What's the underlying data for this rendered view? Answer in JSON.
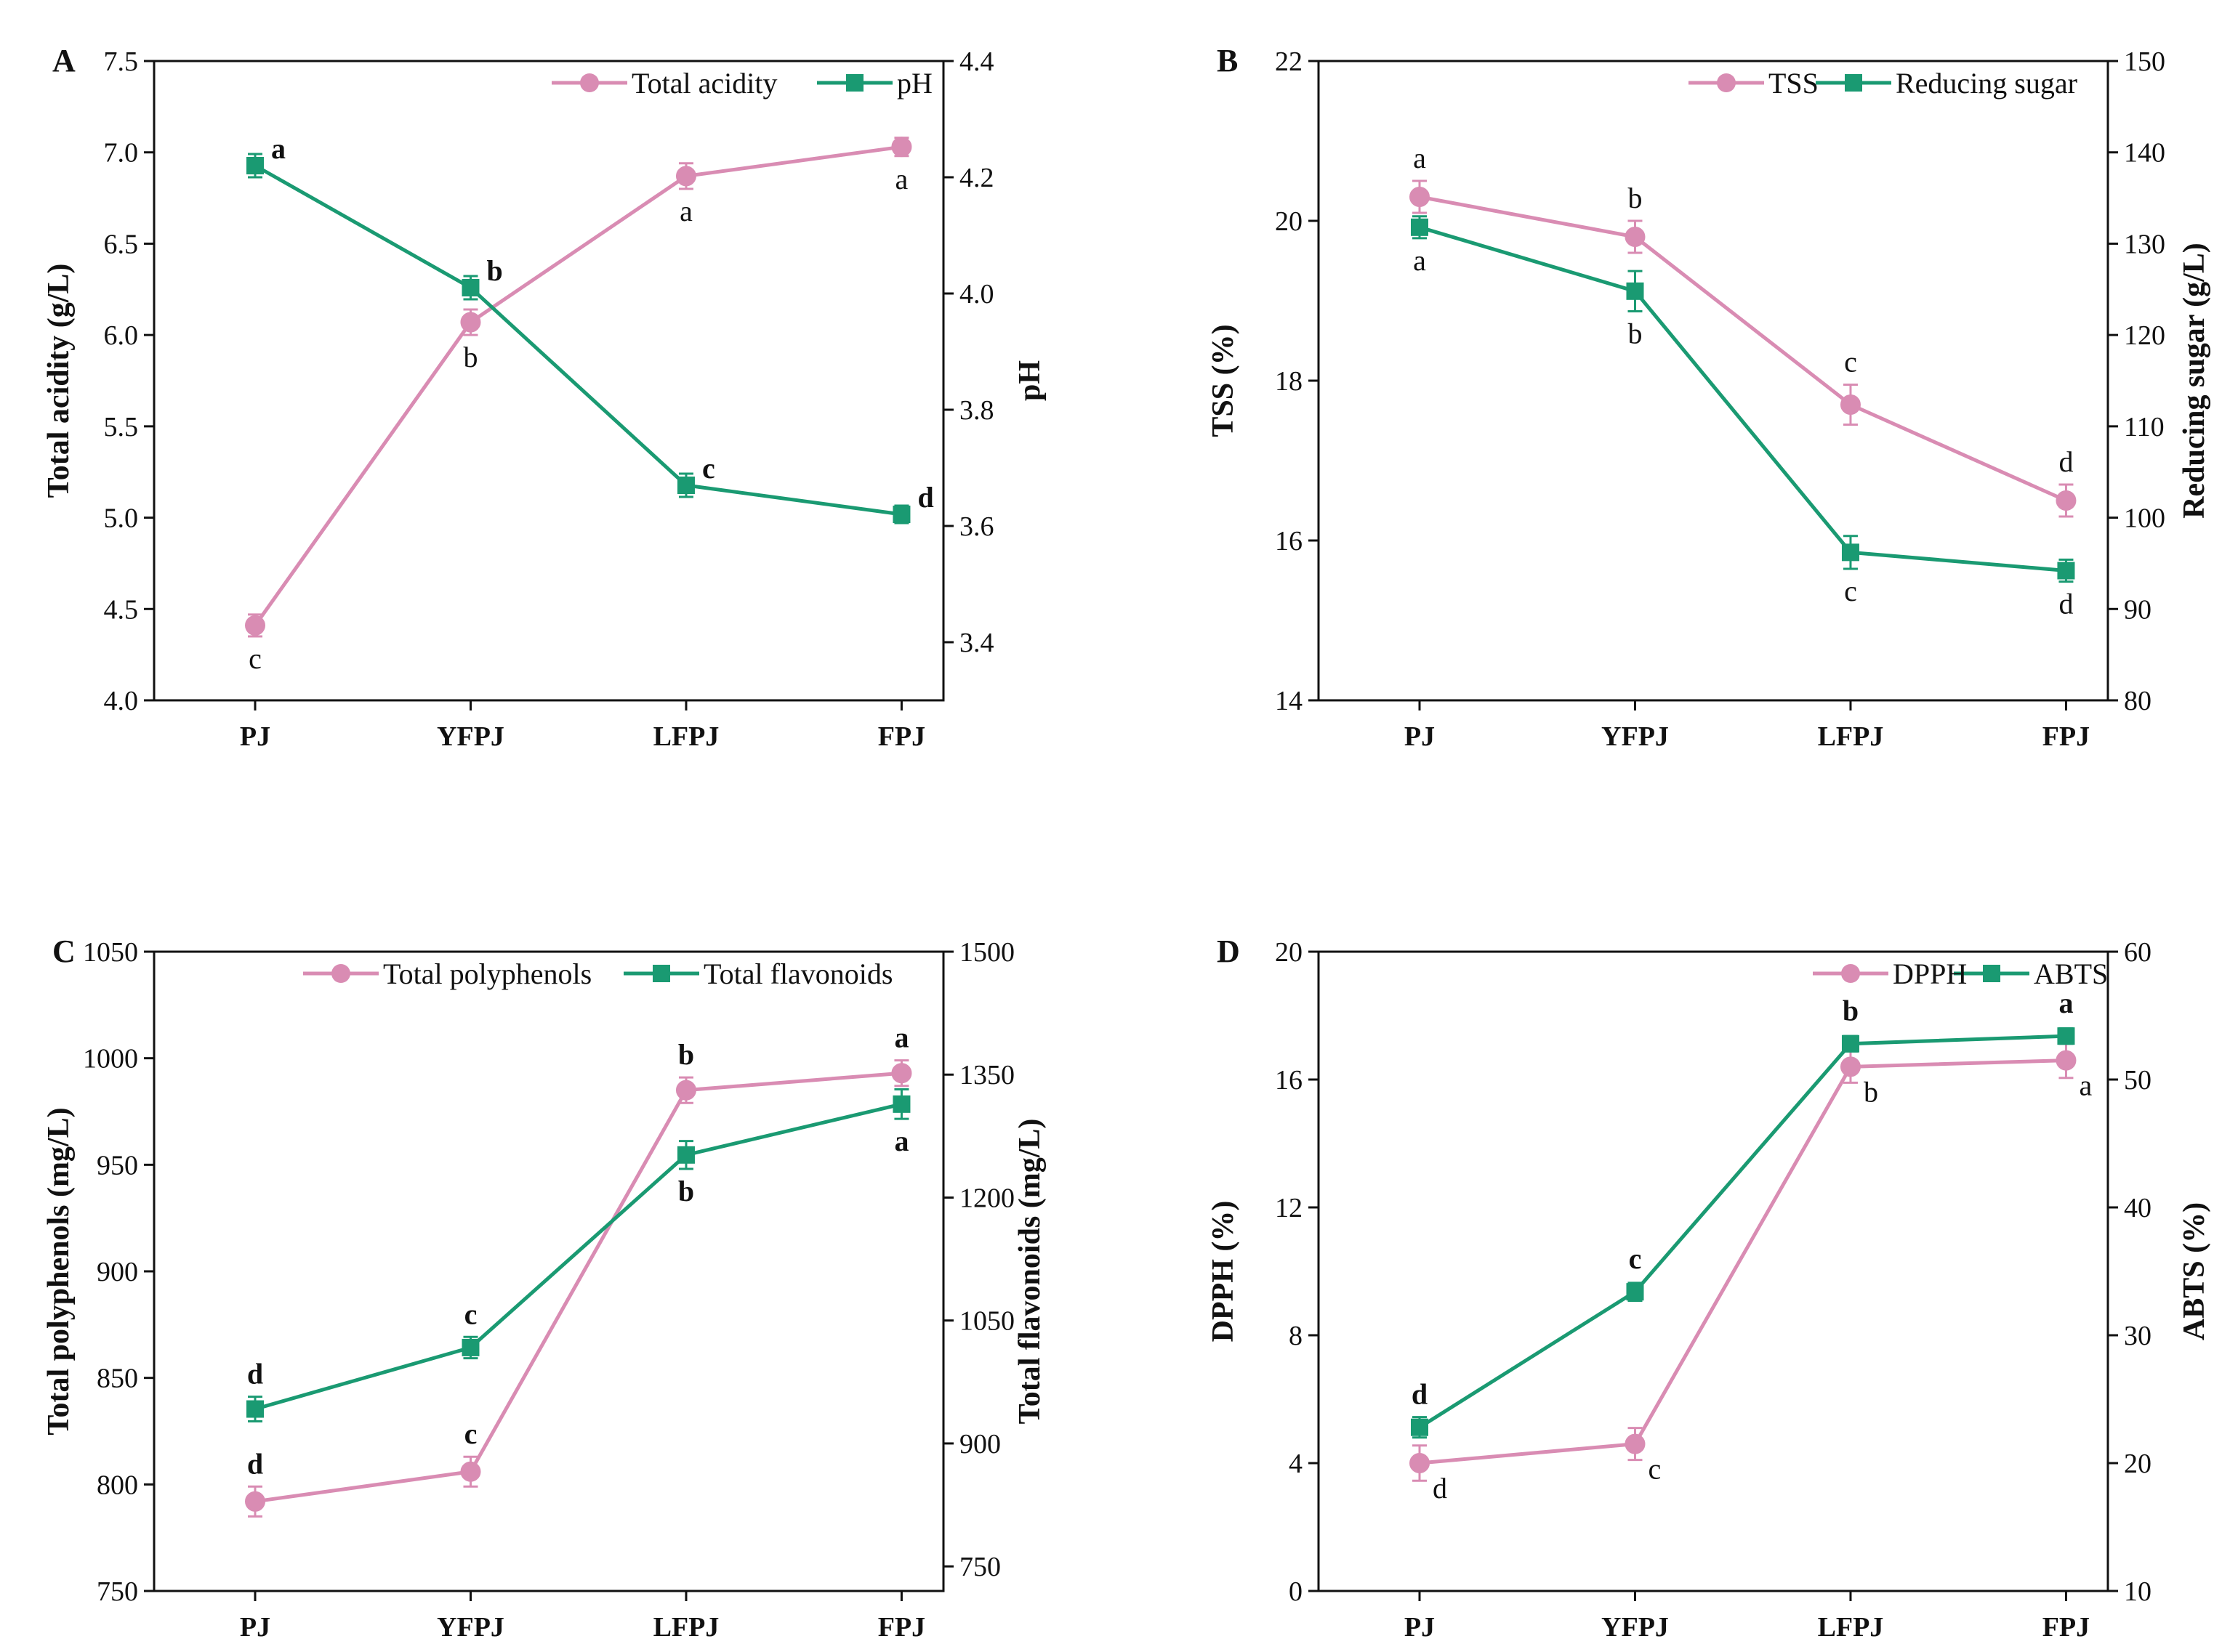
{
  "chart_data": [
    {
      "type": "line",
      "panel": "A",
      "categories": [
        "PJ",
        "YFPJ",
        "LFPJ",
        "FPJ"
      ],
      "left_axis": {
        "label": "Total acidity (g/L)",
        "ylim": [
          4.0,
          7.5
        ],
        "ticks": [
          "4.0",
          "4.5",
          "5.0",
          "5.5",
          "6.0",
          "6.5",
          "7.0",
          "7.5"
        ]
      },
      "right_axis": {
        "label": "pH",
        "ylim": [
          3.3,
          4.4
        ],
        "ticks": [
          "3.4",
          "3.6",
          "3.8",
          "4.0",
          "4.2",
          "4.4"
        ]
      },
      "series": [
        {
          "name": "Total acidity",
          "axis": "left",
          "color": "#d98cb3",
          "marker": "circle",
          "values": [
            4.41,
            6.07,
            6.87,
            7.03
          ],
          "errors": [
            0.06,
            0.07,
            0.07,
            0.05
          ],
          "labels": [
            "c",
            "b",
            "a",
            "a"
          ],
          "label_pos": [
            "below",
            "below",
            "below",
            "below"
          ],
          "label_bold": false
        },
        {
          "name": "pH",
          "axis": "right",
          "color": "#1a9a72",
          "marker": "square",
          "values": [
            4.22,
            4.01,
            3.67,
            3.62
          ],
          "errors": [
            0.02,
            0.02,
            0.02,
            0.015
          ],
          "labels": [
            "a",
            "b",
            "c",
            "d"
          ],
          "label_pos": [
            "right",
            "right",
            "right",
            "right"
          ],
          "label_bold": true
        }
      ]
    },
    {
      "type": "line",
      "panel": "B",
      "categories": [
        "PJ",
        "YFPJ",
        "LFPJ",
        "FPJ"
      ],
      "left_axis": {
        "label": "TSS (%)",
        "ylim": [
          14,
          22
        ],
        "ticks": [
          "14",
          "16",
          "18",
          "20",
          "22"
        ]
      },
      "right_axis": {
        "label": "Reducing sugar (g/L)",
        "ylim": [
          80,
          150
        ],
        "ticks": [
          "80",
          "90",
          "100",
          "110",
          "120",
          "130",
          "140",
          "150"
        ]
      },
      "series": [
        {
          "name": "TSS",
          "axis": "left",
          "color": "#d98cb3",
          "marker": "circle",
          "values": [
            20.3,
            19.8,
            17.7,
            16.5
          ],
          "errors": [
            0.2,
            0.2,
            0.25,
            0.2
          ],
          "labels": [
            "a",
            "b",
            "c",
            "d"
          ],
          "label_pos": [
            "above",
            "above",
            "above",
            "above"
          ],
          "label_bold": false
        },
        {
          "name": "Reducing sugar",
          "axis": "right",
          "color": "#1a9a72",
          "marker": "square",
          "values": [
            131.8,
            124.8,
            96.2,
            94.2
          ],
          "errors": [
            1.2,
            2.2,
            1.8,
            1.2
          ],
          "labels": [
            "a",
            "b",
            "c",
            "d"
          ],
          "label_pos": [
            "below",
            "below",
            "below",
            "below"
          ],
          "label_bold": false
        }
      ]
    },
    {
      "type": "line",
      "panel": "C",
      "categories": [
        "PJ",
        "YFPJ",
        "LFPJ",
        "FPJ"
      ],
      "left_axis": {
        "label": "Total polyphenols (mg/L)",
        "ylim": [
          750,
          1050
        ],
        "ticks": [
          "750",
          "800",
          "850",
          "900",
          "950",
          "1000",
          "1050"
        ]
      },
      "right_axis": {
        "label": "Total flavonoids (mg/L)",
        "ylim": [
          720,
          1500
        ],
        "ticks": [
          "750",
          "900",
          "1050",
          "1200",
          "1350",
          "1500"
        ]
      },
      "series": [
        {
          "name": "Total polyphenols",
          "axis": "left",
          "color": "#d98cb3",
          "marker": "circle",
          "values": [
            792,
            806,
            985,
            993
          ],
          "errors": [
            7,
            7,
            6,
            6
          ],
          "labels": [
            "d",
            "c",
            "b",
            "a"
          ],
          "label_pos": [
            "above",
            "above",
            "above",
            "above"
          ],
          "label_bold": true
        },
        {
          "name": "Total flavonoids",
          "axis": "right",
          "color": "#1a9a72",
          "marker": "square",
          "values": [
            942,
            1017,
            1252,
            1314
          ],
          "errors": [
            15,
            13,
            17,
            18
          ],
          "labels": [
            "d",
            "c",
            "b",
            "a"
          ],
          "label_pos": [
            "above",
            "above",
            "below",
            "below"
          ],
          "label_bold": true
        }
      ]
    },
    {
      "type": "line",
      "panel": "D",
      "categories": [
        "PJ",
        "YFPJ",
        "LFPJ",
        "FPJ"
      ],
      "left_axis": {
        "label": "DPPH (%)",
        "ylim": [
          0,
          20
        ],
        "ticks": [
          "0",
          "4",
          "8",
          "12",
          "16",
          "20"
        ]
      },
      "right_axis": {
        "label": "ABTS (%)",
        "ylim": [
          10,
          60
        ],
        "ticks": [
          "10",
          "20",
          "30",
          "40",
          "50",
          "60"
        ]
      },
      "series": [
        {
          "name": "DPPH",
          "axis": "left",
          "color": "#d98cb3",
          "marker": "circle",
          "values": [
            4.0,
            4.6,
            16.4,
            16.6
          ],
          "errors": [
            0.55,
            0.5,
            0.5,
            0.55
          ],
          "labels": [
            "d",
            "c",
            "b",
            "a"
          ],
          "label_pos": [
            "lower-right",
            "lower-right",
            "lower-right",
            "lower-right"
          ],
          "label_bold": false
        },
        {
          "name": "ABTS",
          "axis": "right",
          "color": "#1a9a72",
          "marker": "square",
          "values": [
            22.8,
            33.4,
            52.8,
            53.4
          ],
          "errors": [
            0.8,
            0.7,
            0.6,
            0.6
          ],
          "labels": [
            "d",
            "c",
            "b",
            "a"
          ],
          "label_pos": [
            "above",
            "above",
            "above",
            "above"
          ],
          "label_bold": true
        }
      ]
    }
  ]
}
